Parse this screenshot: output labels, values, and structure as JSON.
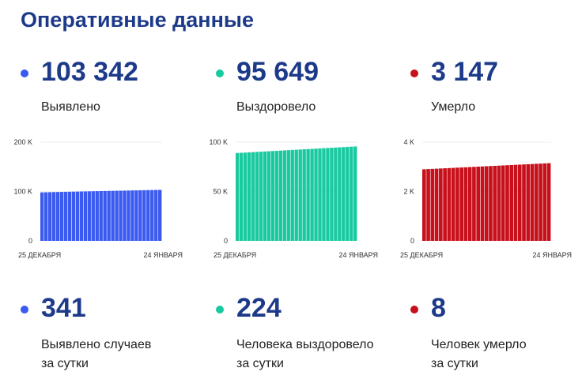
{
  "title": "Оперативные данные",
  "stats": [
    {
      "value": "103 342",
      "label": "Выявлено",
      "color": "#3a5af0"
    },
    {
      "value": "95 649",
      "label": "Выздоровело",
      "color": "#19c9a0"
    },
    {
      "value": "3 147",
      "label": "Умерло",
      "color": "#c8101c"
    }
  ],
  "daily": [
    {
      "value": "341",
      "label1": "Выявлено случаев",
      "label2": "за сутки",
      "color": "#3a5af0"
    },
    {
      "value": "224",
      "label1": "Человека выздоровело",
      "label2": "за сутки",
      "color": "#19c9a0"
    },
    {
      "value": "8",
      "label1": "Человек умерло",
      "label2": "за сутки",
      "color": "#c8101c"
    }
  ],
  "chart_data": [
    {
      "type": "bar",
      "title": "Выявлено",
      "categories_start": "25 ДЕКАБРЯ",
      "categories_end": "24 ЯНВАРЯ",
      "ylim": [
        0,
        200000
      ],
      "yticks": [
        "0",
        "100 K",
        "200 K"
      ],
      "ytick_values": [
        0,
        100000,
        200000
      ],
      "color": "#3a5af0",
      "start": 98300,
      "end": 103342,
      "count": 31
    },
    {
      "type": "bar",
      "title": "Выздоровело",
      "categories_start": "25 ДЕКАБРЯ",
      "categories_end": "24 ЯНВАРЯ",
      "ylim": [
        0,
        100000
      ],
      "yticks": [
        "0",
        "50 K",
        "100 K"
      ],
      "ytick_values": [
        0,
        50000,
        100000
      ],
      "color": "#19c9a0",
      "start": 89000,
      "end": 95649,
      "count": 31
    },
    {
      "type": "bar",
      "title": "Умерло",
      "categories_start": "25 ДЕКАБРЯ",
      "categories_end": "24 ЯНВАРЯ",
      "ylim": [
        0,
        4000
      ],
      "yticks": [
        "0",
        "2 K",
        "4 K"
      ],
      "ytick_values": [
        0,
        2000,
        4000
      ],
      "color": "#c8101c",
      "start": 2900,
      "end": 3147,
      "count": 31
    }
  ]
}
